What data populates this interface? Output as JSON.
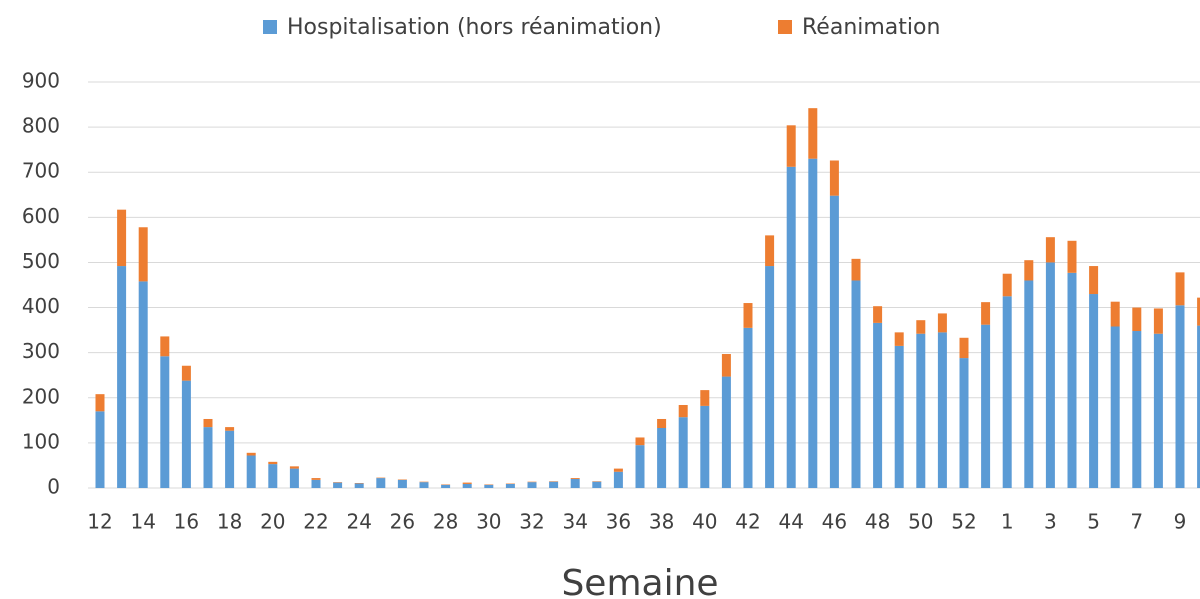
{
  "chart_data": {
    "type": "stacked_bar",
    "x_label": "Semaine",
    "categories": [
      "12",
      null,
      "14",
      null,
      "16",
      null,
      "18",
      null,
      "20",
      null,
      "22",
      null,
      "24",
      null,
      "26",
      null,
      "28",
      null,
      "30",
      null,
      "32",
      null,
      "34",
      null,
      "36",
      null,
      "38",
      null,
      "40",
      null,
      "42",
      null,
      "44",
      null,
      "46",
      null,
      "48",
      null,
      "50",
      null,
      "52",
      null,
      "1",
      null,
      "3",
      null,
      "5",
      null,
      "7",
      null,
      "9",
      null
    ],
    "series": [
      {
        "name": "Hospitalisation (hors réanimation)",
        "color": "#5b9bd5",
        "values": [
          170,
          492,
          458,
          292,
          238,
          135,
          127,
          72,
          53,
          43,
          18,
          12,
          10,
          22,
          18,
          13,
          7,
          9,
          7,
          9,
          13,
          14,
          20,
          14,
          36,
          95,
          133,
          157,
          182,
          247,
          355,
          492,
          712,
          730,
          648,
          460,
          366,
          315,
          342,
          345,
          288,
          362,
          425,
          460,
          500,
          477,
          430,
          358,
          348,
          342,
          405,
          360
        ]
      },
      {
        "name": "Réanimation",
        "color": "#ed7d31",
        "values": [
          38,
          125,
          120,
          44,
          33,
          18,
          8,
          6,
          5,
          5,
          4,
          1,
          1,
          1,
          1,
          1,
          1,
          3,
          1,
          1,
          1,
          1,
          2,
          1,
          7,
          17,
          20,
          27,
          35,
          50,
          55,
          68,
          92,
          112,
          78,
          48,
          37,
          30,
          30,
          42,
          45,
          50,
          50,
          45,
          56,
          71,
          62,
          55,
          52,
          56,
          73,
          62
        ]
      }
    ],
    "ylim": [
      0,
      900
    ],
    "yticks": [
      0,
      100,
      200,
      300,
      400,
      500,
      600,
      700,
      800,
      900
    ],
    "grid": true
  }
}
